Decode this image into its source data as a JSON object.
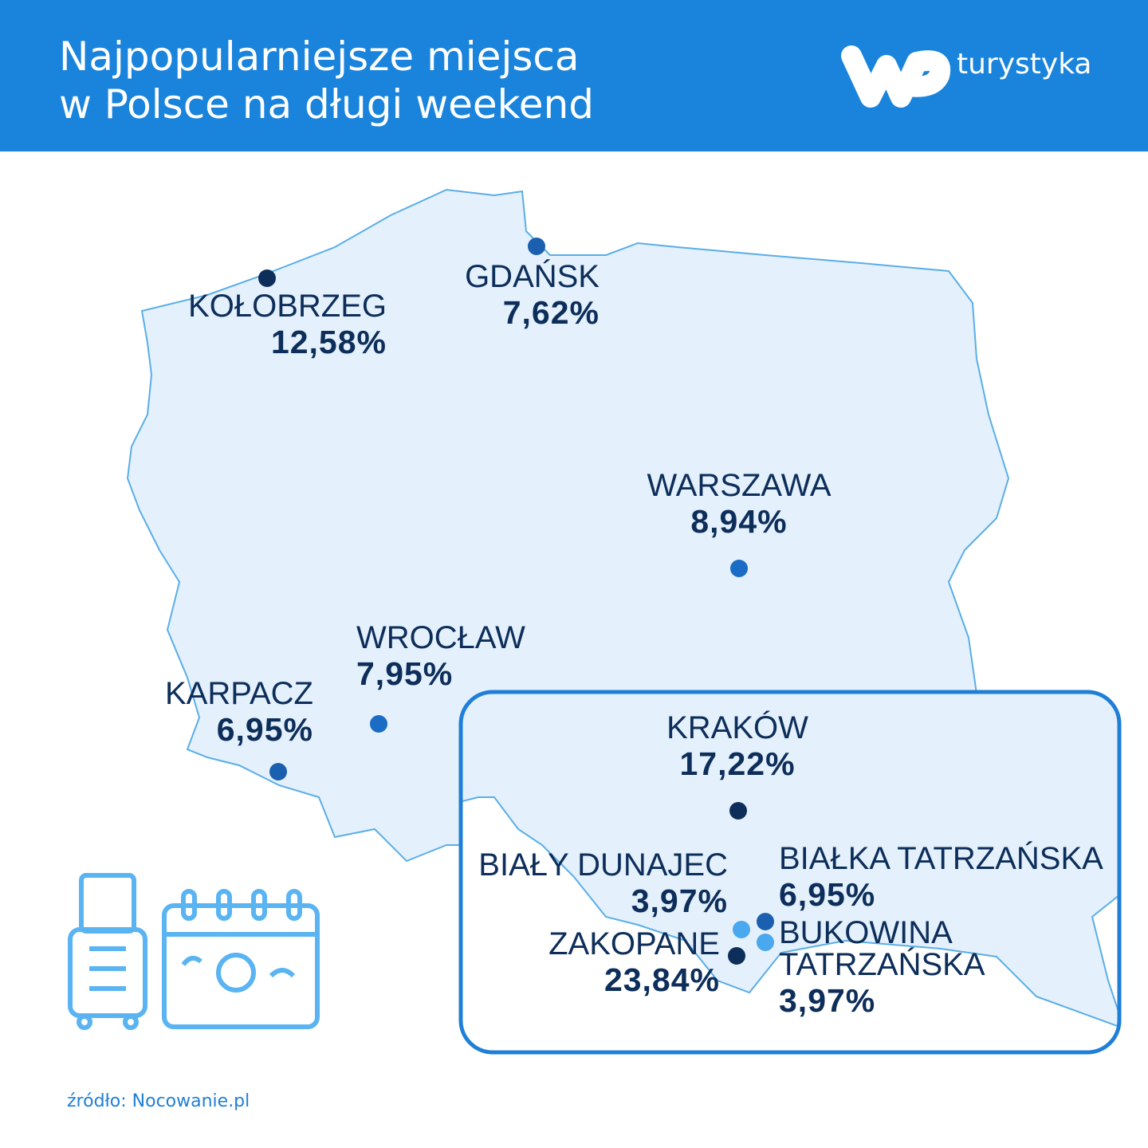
{
  "header": {
    "title_lines": [
      "Najpopularniejsze miejsca",
      "w Polsce na długi weekend"
    ],
    "brand": "turystyka"
  },
  "places": [
    {
      "name_lines": [
        "KOŁOBRZEG"
      ],
      "share": "12,58%",
      "dot_color": "#0d2e5a"
    },
    {
      "name_lines": [
        "GDAŃSK"
      ],
      "share": "7,62%",
      "dot_color": "#1a5fb0"
    },
    {
      "name_lines": [
        "WARSZAWA"
      ],
      "share": "8,94%",
      "dot_color": "#1a6cc4"
    },
    {
      "name_lines": [
        "WROCŁAW"
      ],
      "share": "7,95%",
      "dot_color": "#1a6cc4"
    },
    {
      "name_lines": [
        "KARPACZ"
      ],
      "share": "6,95%",
      "dot_color": "#1a5fb0"
    },
    {
      "name_lines": [
        "KRAKÓW"
      ],
      "share": "17,22%",
      "dot_color": "#0d2e5a"
    },
    {
      "name_lines": [
        "BIAŁY DUNAJEC"
      ],
      "share": "3,97%",
      "dot_color": "#4aa8ee"
    },
    {
      "name_lines": [
        "BIAŁKA TATRZAŃSKA"
      ],
      "share": "6,95%",
      "dot_color": "#1a5fb0"
    },
    {
      "name_lines": [
        "ZAKOPANE"
      ],
      "share": "23,84%",
      "dot_color": "#0d2e5a"
    },
    {
      "name_lines": [
        "BUKOWINA",
        "TATRZAŃSKA"
      ],
      "share": "3,97%",
      "dot_color": "#4aa8ee"
    }
  ],
  "source": "źródło: Nocowanie.pl"
}
